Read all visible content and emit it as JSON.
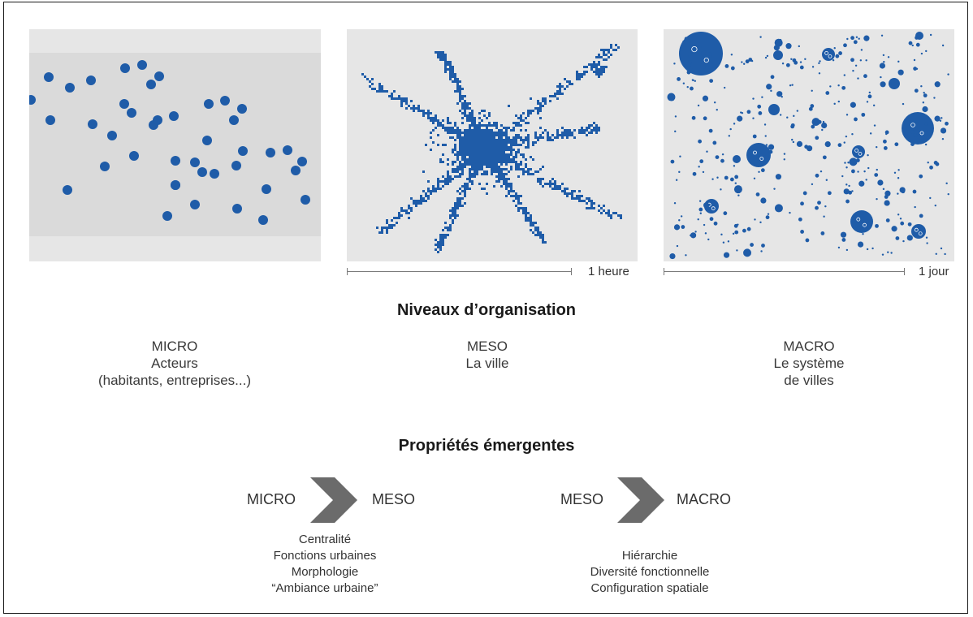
{
  "scales": [
    {
      "label": "1 heure"
    },
    {
      "label": "1 jour"
    }
  ],
  "organisation": {
    "title": "Niveaux d’organisation",
    "levels": [
      {
        "name": "MICRO",
        "lines": [
          "Acteurs",
          "(habitants, entreprises...)"
        ]
      },
      {
        "name": "MESO",
        "lines": [
          "La ville"
        ]
      },
      {
        "name": "MACRO",
        "lines": [
          "Le système",
          "de villes"
        ]
      }
    ]
  },
  "emergent": {
    "title": "Propriétés émergentes",
    "transitions": [
      {
        "from": "MICRO",
        "to": "MESO",
        "properties": [
          "Centralité",
          "Fonctions urbaines",
          "Morphologie",
          "“Ambiance urbaine”"
        ]
      },
      {
        "from": "MESO",
        "to": "MACRO",
        "properties": [
          "Hiérarchie",
          "Diversité fonctionnelle",
          "Configuration spatiale"
        ]
      }
    ]
  },
  "colors": {
    "dot": "#1f5ca8",
    "panel_bg": "#e6e6e6",
    "panel_band": "#dadada",
    "arrow": "#6b6b6b"
  }
}
